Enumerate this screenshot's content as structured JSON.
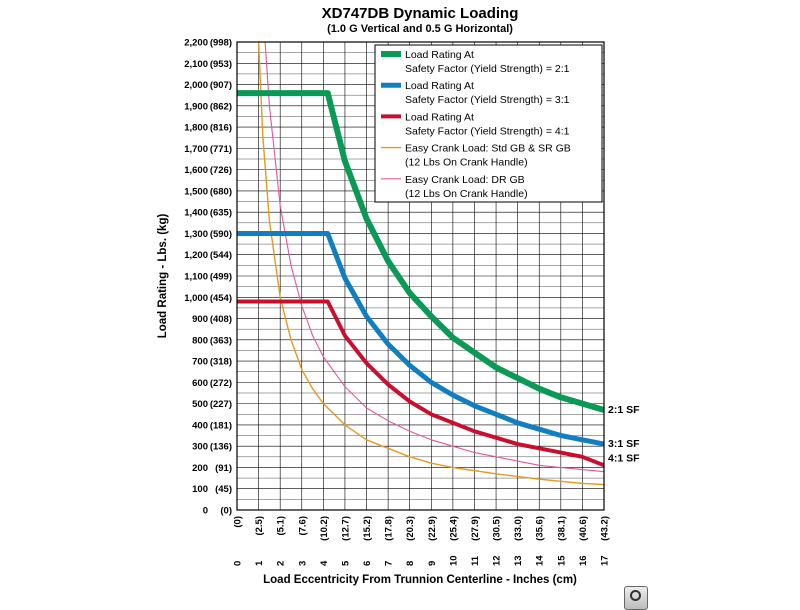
{
  "chart_data": {
    "type": "line",
    "title": "XD747DB Dynamic Loading",
    "subtitle": "(1.0 G Vertical and 0.5 G Horizontal)",
    "xlabel": "Load Eccentricity From Trunnion Centerline - Inches (cm)",
    "ylabel": "Load Rating - Lbs. (kg)",
    "xlim": [
      0,
      17
    ],
    "ylim": [
      0,
      2200
    ],
    "grid": true,
    "legend_position": "top-right",
    "x_ticks": [
      {
        "main": "0",
        "sub": "(0)"
      },
      {
        "main": "1",
        "sub": "(2.5)"
      },
      {
        "main": "2",
        "sub": "(5.1)"
      },
      {
        "main": "3",
        "sub": "(7.6)"
      },
      {
        "main": "4",
        "sub": "(10.2)"
      },
      {
        "main": "5",
        "sub": "(12.7)"
      },
      {
        "main": "6",
        "sub": "(15.2)"
      },
      {
        "main": "7",
        "sub": "(17.8)"
      },
      {
        "main": "8",
        "sub": "(20.3)"
      },
      {
        "main": "9",
        "sub": "(22.9)"
      },
      {
        "main": "10",
        "sub": "(25.4)"
      },
      {
        "main": "11",
        "sub": "(27.9)"
      },
      {
        "main": "12",
        "sub": "(30.5)"
      },
      {
        "main": "13",
        "sub": "(33.0)"
      },
      {
        "main": "14",
        "sub": "(35.6)"
      },
      {
        "main": "15",
        "sub": "(38.1)"
      },
      {
        "main": "16",
        "sub": "(40.6)"
      },
      {
        "main": "17",
        "sub": "(43.2)"
      }
    ],
    "y_ticks": [
      {
        "value": 0,
        "label": "0"
      },
      {
        "value": 100,
        "label": "100"
      },
      {
        "value": 200,
        "label": "200"
      },
      {
        "value": 300,
        "label": "300"
      },
      {
        "value": 400,
        "label": "400"
      },
      {
        "value": 500,
        "label": "500"
      },
      {
        "value": 600,
        "label": "600"
      },
      {
        "value": 700,
        "label": "700"
      },
      {
        "value": 800,
        "label": "800"
      },
      {
        "value": 900,
        "label": "900"
      },
      {
        "value": 1000,
        "label": "1,000"
      },
      {
        "value": 1100,
        "label": "1,100"
      },
      {
        "value": 1200,
        "label": "1,200"
      },
      {
        "value": 1300,
        "label": "1,300"
      },
      {
        "value": 1400,
        "label": "1,400"
      },
      {
        "value": 1500,
        "label": "1,500"
      },
      {
        "value": 1600,
        "label": "1,600"
      },
      {
        "value": 1700,
        "label": "1,700"
      },
      {
        "value": 1800,
        "label": "1,800"
      },
      {
        "value": 1900,
        "label": "1,900"
      },
      {
        "value": 2000,
        "label": "2,000"
      },
      {
        "value": 2100,
        "label": "2,100"
      },
      {
        "value": 2200,
        "label": "2,200"
      }
    ],
    "y_ticks_kg": [
      "(0)",
      "(45)",
      "(91)",
      "(136)",
      "(181)",
      "(227)",
      "(272)",
      "(318)",
      "(363)",
      "(408)",
      "(454)",
      "(499)",
      "(544)",
      "(590)",
      "(635)",
      "(680)",
      "(726)",
      "(771)",
      "(816)",
      "(862)",
      "(907)",
      "(953)",
      "(998)"
    ],
    "series": [
      {
        "name": "Load Rating At Safety Factor (Yield Strength) = 2:1",
        "legend_line1": "Load Rating At",
        "legend_line2": "Safety Factor (Yield Strength) = 2:1",
        "color": "#0a9a55",
        "end_label": "2:1 SF",
        "x": [
          0,
          4.2,
          5,
          6,
          7,
          8,
          9,
          10,
          11,
          12,
          13,
          14,
          15,
          16,
          17
        ],
        "y": [
          1960,
          1960,
          1640,
          1370,
          1170,
          1020,
          910,
          810,
          740,
          670,
          620,
          570,
          530,
          500,
          470
        ]
      },
      {
        "name": "Load Rating At Safety Factor (Yield Strength) = 3:1",
        "legend_line1": "Load Rating At",
        "legend_line2": "Safety Factor (Yield Strength) = 3:1",
        "color": "#0f7fc1",
        "end_label": "3:1 SF",
        "x": [
          0,
          4.2,
          5,
          6,
          7,
          8,
          9,
          10,
          11,
          12,
          13,
          14,
          15,
          16,
          17
        ],
        "y": [
          1300,
          1300,
          1090,
          910,
          780,
          680,
          600,
          540,
          490,
          450,
          410,
          380,
          350,
          330,
          310
        ]
      },
      {
        "name": "Load Rating At Safety Factor (Yield Strength) = 4:1",
        "legend_line1": "Load Rating At",
        "legend_line2": "Safety Factor (Yield Strength) = 4:1",
        "color": "#c8102e",
        "end_label": "4:1 SF",
        "x": [
          0,
          4.2,
          5,
          6,
          7,
          8,
          9,
          10,
          11,
          12,
          13,
          14,
          15,
          16,
          17
        ],
        "y": [
          980,
          980,
          820,
          690,
          590,
          510,
          450,
          410,
          370,
          340,
          310,
          290,
          270,
          250,
          210
        ]
      },
      {
        "name": "Easy Crank Load: Std GB & SR GB (12 Lbs On Crank Handle)",
        "legend_line1": "Easy Crank Load: Std GB & SR GB",
        "legend_line2": "(12 Lbs On Crank Handle)",
        "color": "#e39a1f",
        "end_label": "",
        "x": [
          1.0,
          1.2,
          1.5,
          2,
          2.5,
          3,
          3.5,
          4,
          5,
          6,
          7,
          8,
          9,
          10,
          12,
          14,
          16,
          17
        ],
        "y": [
          2200,
          1750,
          1360,
          1000,
          800,
          660,
          570,
          500,
          400,
          330,
          290,
          250,
          220,
          200,
          170,
          145,
          125,
          120
        ]
      },
      {
        "name": "Easy Crank Load: DR GB (12 Lbs On Crank Handle)",
        "legend_line1": "Easy Crank Load: DR GB",
        "legend_line2": "(12 Lbs On Crank Handle)",
        "color": "#e0569f",
        "end_label": "",
        "x": [
          1.3,
          1.5,
          2,
          2.5,
          3,
          3.5,
          4,
          5,
          6,
          7,
          8,
          9,
          10,
          11,
          12,
          13,
          14,
          15,
          16,
          17
        ],
        "y": [
          2200,
          1900,
          1430,
          1150,
          960,
          820,
          720,
          580,
          480,
          420,
          370,
          330,
          300,
          270,
          250,
          230,
          210,
          200,
          190,
          180
        ]
      }
    ]
  },
  "ui": {
    "zoom_icon": "magnifier-icon"
  }
}
